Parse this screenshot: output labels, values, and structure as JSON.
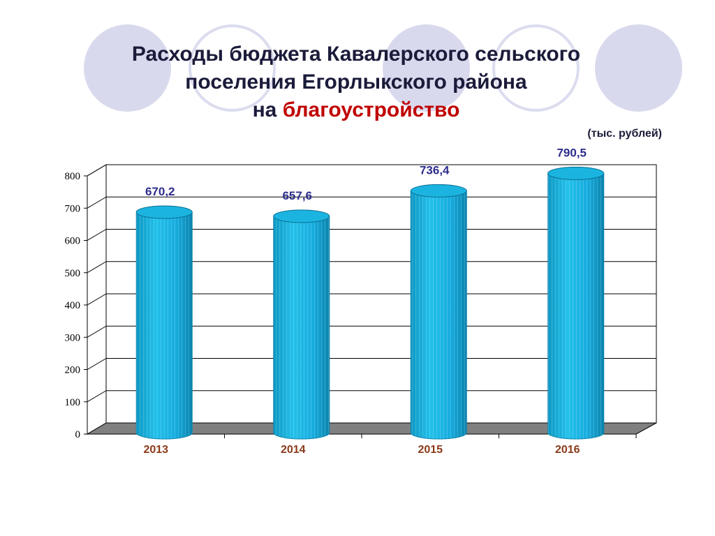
{
  "title": {
    "line1": "Расходы бюджета Кавалерского сельского",
    "line2": "поселения Егорлыкского района",
    "line3_prefix": "на",
    "line3_highlight": "благоустройство"
  },
  "units_label": "(тыс. рублей)",
  "colors": {
    "bar_fill": "#1bb4e0",
    "bar_dark": "#0a84ad",
    "value_label": "#2d2d8c",
    "year_label": "#8b3a1a",
    "title_highlight": "#c00000",
    "floor": "#808080"
  },
  "chart_data": {
    "type": "bar",
    "categories": [
      "2013",
      "2014",
      "2015",
      "2016"
    ],
    "values": [
      670.2,
      657.6,
      736.4,
      790.5
    ],
    "value_labels": [
      "670,2",
      "657,6",
      "736,4",
      "790,5"
    ],
    "y_ticks": [
      0,
      100,
      200,
      300,
      400,
      500,
      600,
      700,
      800
    ],
    "ylim": [
      0,
      800
    ],
    "style": "3d-cylinder",
    "grid": true,
    "legend": "none"
  }
}
